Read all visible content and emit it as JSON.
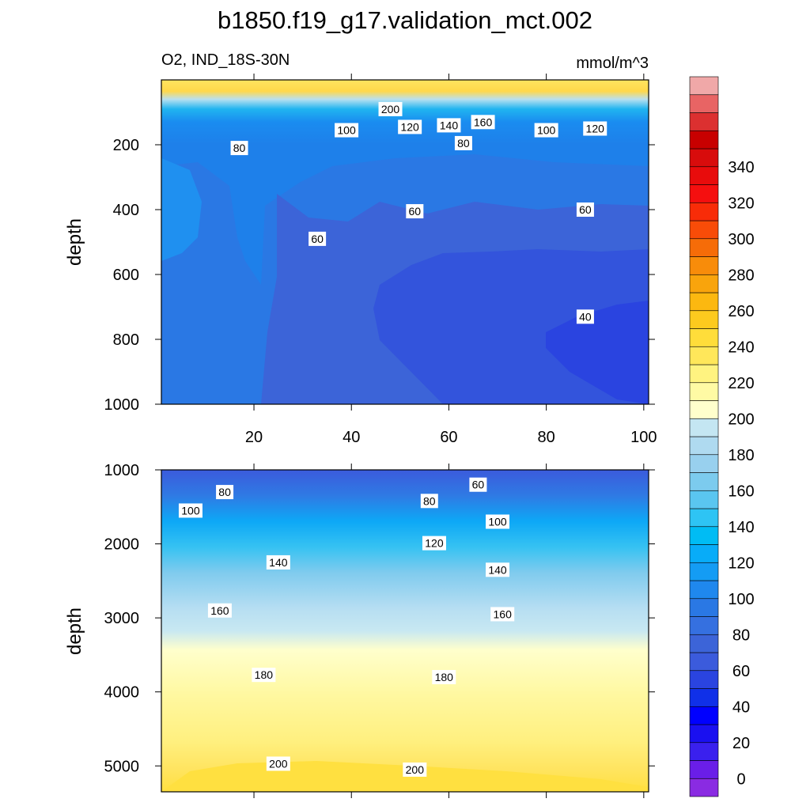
{
  "title": "b1850.f19_g17.validation_mct.002",
  "subtitle_left": "O2, IND_18S-30N",
  "subtitle_right": "mmol/m^3",
  "chart_data": [
    {
      "type": "heatmap",
      "panel": "upper",
      "variable": "O2",
      "region": "IND_18S-30N",
      "units": "mmol/m^3",
      "ylabel": "depth",
      "xlim": [
        1,
        101
      ],
      "ylim": [
        1000,
        0
      ],
      "x_ticks": [
        20,
        40,
        60,
        80,
        100
      ],
      "y_ticks": [
        200,
        400,
        600,
        800,
        1000
      ],
      "contour_labels": [
        {
          "value": "200",
          "x": 48,
          "y": 90
        },
        {
          "value": "100",
          "x": 39,
          "y": 155
        },
        {
          "value": "120",
          "x": 52,
          "y": 145
        },
        {
          "value": "140",
          "x": 60,
          "y": 140
        },
        {
          "value": "160",
          "x": 67,
          "y": 130
        },
        {
          "value": "100",
          "x": 80,
          "y": 155
        },
        {
          "value": "120",
          "x": 90,
          "y": 150
        },
        {
          "value": "80",
          "x": 17,
          "y": 210
        },
        {
          "value": "80",
          "x": 63,
          "y": 195
        },
        {
          "value": "60",
          "x": 53,
          "y": 405
        },
        {
          "value": "60",
          "x": 88,
          "y": 400
        },
        {
          "value": "60",
          "x": 33,
          "y": 490
        },
        {
          "value": "40",
          "x": 88,
          "y": 730
        }
      ]
    },
    {
      "type": "heatmap",
      "panel": "lower",
      "variable": "O2",
      "region": "IND_18S-30N",
      "units": "mmol/m^3",
      "ylabel": "depth",
      "xlim": [
        1,
        101
      ],
      "ylim": [
        5350,
        1000
      ],
      "y_ticks": [
        1000,
        2000,
        3000,
        4000,
        5000
      ],
      "contour_labels": [
        {
          "value": "80",
          "x": 14,
          "y": 1300
        },
        {
          "value": "60",
          "x": 66,
          "y": 1200
        },
        {
          "value": "100",
          "x": 7,
          "y": 1550
        },
        {
          "value": "80",
          "x": 56,
          "y": 1420
        },
        {
          "value": "100",
          "x": 70,
          "y": 1700
        },
        {
          "value": "120",
          "x": 57,
          "y": 1990
        },
        {
          "value": "140",
          "x": 25,
          "y": 2250
        },
        {
          "value": "140",
          "x": 70,
          "y": 2350
        },
        {
          "value": "160",
          "x": 13,
          "y": 2900
        },
        {
          "value": "160",
          "x": 71,
          "y": 2950
        },
        {
          "value": "180",
          "x": 22,
          "y": 3770
        },
        {
          "value": "180",
          "x": 59,
          "y": 3800
        },
        {
          "value": "200",
          "x": 25,
          "y": 4970
        },
        {
          "value": "200",
          "x": 53,
          "y": 5050
        }
      ]
    }
  ],
  "colorbar": {
    "tick_labels": [
      "0",
      "20",
      "40",
      "60",
      "80",
      "100",
      "120",
      "140",
      "160",
      "180",
      "200",
      "220",
      "240",
      "260",
      "280",
      "300",
      "320",
      "340"
    ],
    "colors": [
      "#8a2be2",
      "#6a1ee8",
      "#3a20ee",
      "#1a10f0",
      "#0000ff",
      "#1030e8",
      "#2a44e0",
      "#3b5bdc",
      "#3c64d8",
      "#3570e0",
      "#2a78e4",
      "#1f88ee",
      "#149cf4",
      "#08acf8",
      "#00bcf4",
      "#2ec4f4",
      "#5ac6f0",
      "#7ccbee",
      "#98d0ee",
      "#afdaf0",
      "#c4e6f2",
      "#ffffcc",
      "#fffaa4",
      "#fff380",
      "#ffe75a",
      "#ffdd3a",
      "#fdca1e",
      "#fcb810",
      "#f9a40c",
      "#f88c0a",
      "#f66c08",
      "#f84c08",
      "#f82c08",
      "#f50f0f",
      "#e80c0c",
      "#d80c0c",
      "#c80000",
      "#dc3030",
      "#e86464",
      "#f0a8a8"
    ]
  }
}
